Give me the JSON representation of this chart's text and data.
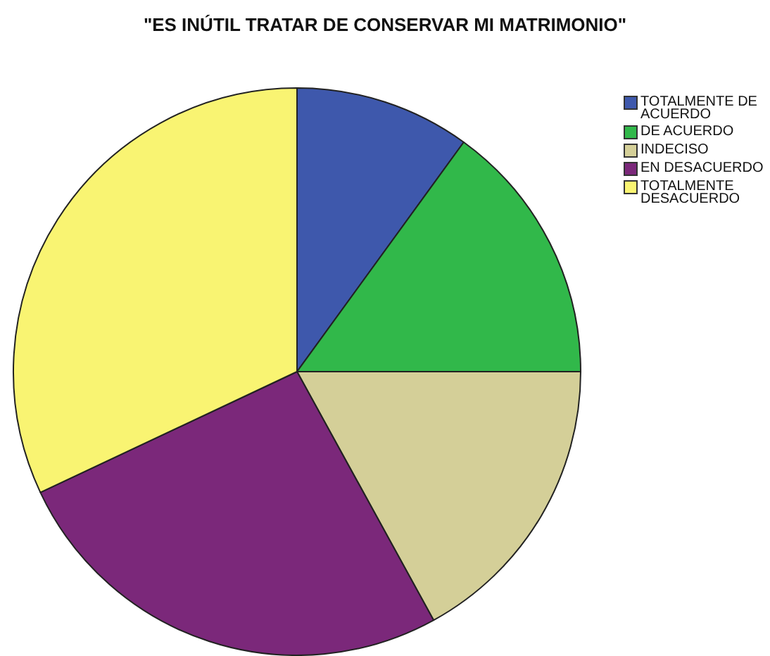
{
  "chart_data": {
    "type": "pie",
    "title": "\"ES INÚTIL TRATAR DE CONSERVAR MI MATRIMONIO\"",
    "categories": [
      "TOTALMENTE DE ACUERDO",
      "DE ACUERDO",
      "INDECISO",
      "EN DESACUERDO",
      "TOTALMENTE DESACUERDO"
    ],
    "values": [
      10,
      15,
      17,
      26,
      32
    ],
    "colors": [
      "#3e58ac",
      "#31b84a",
      "#d4cf98",
      "#7b287a",
      "#f9f472"
    ],
    "legend": "top right"
  }
}
